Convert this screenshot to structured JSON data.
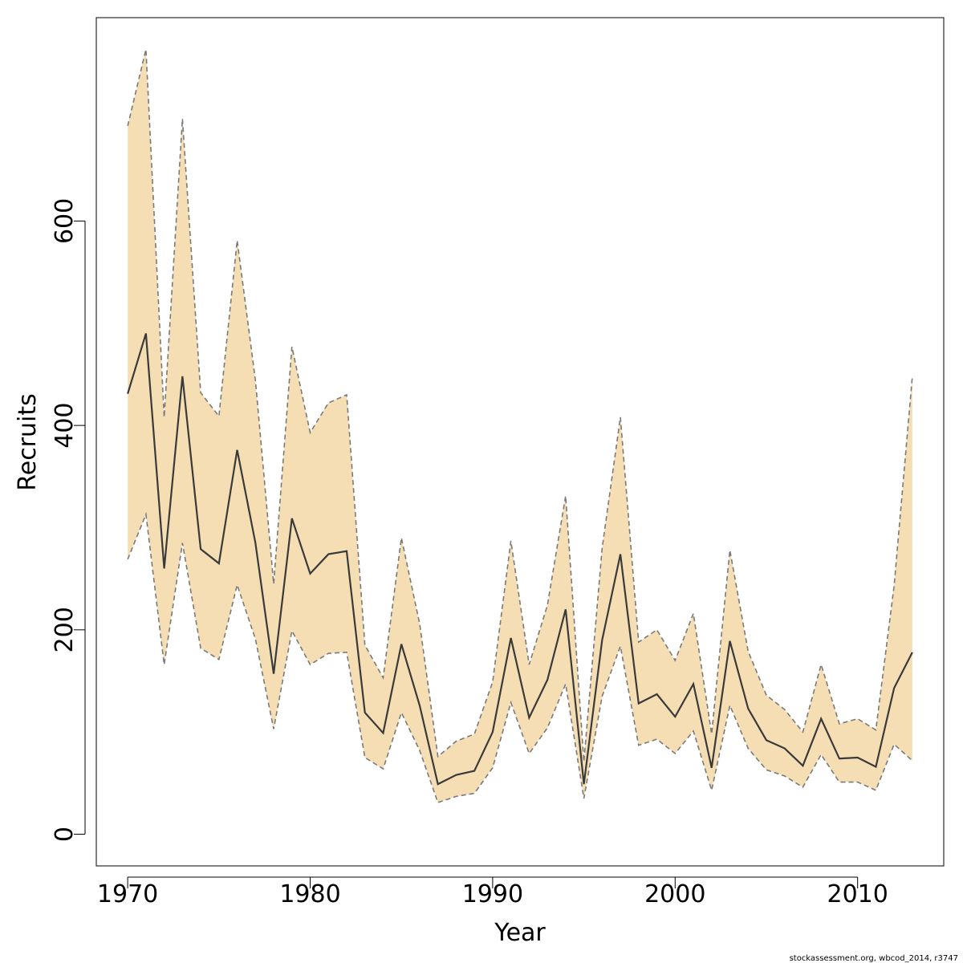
{
  "chart_data": {
    "type": "band-line",
    "x_label": "Year",
    "y_label": "Recruits",
    "footnote": "stockassessment.org, wbcod_2014, r3747",
    "x": [
      1970,
      1971,
      1972,
      1973,
      1974,
      1975,
      1976,
      1977,
      1978,
      1979,
      1980,
      1981,
      1982,
      1983,
      1984,
      1985,
      1986,
      1987,
      1988,
      1989,
      1990,
      1991,
      1992,
      1993,
      1994,
      1995,
      1996,
      1997,
      1998,
      1999,
      2000,
      2001,
      2002,
      2003,
      2004,
      2005,
      2006,
      2007,
      2008,
      2009,
      2010,
      2011,
      2012,
      2013
    ],
    "values": [
      431,
      490,
      260,
      448,
      279,
      265,
      376,
      285,
      157,
      309,
      255,
      274,
      277,
      119,
      99,
      186,
      126,
      49,
      58,
      62,
      100,
      192,
      114,
      151,
      220,
      49,
      190,
      274,
      128,
      137,
      115,
      147,
      65,
      189,
      123,
      92,
      84,
      67,
      113,
      74,
      75,
      66,
      143,
      178
    ],
    "lower": [
      269,
      313,
      166,
      285,
      182,
      171,
      244,
      191,
      103,
      199,
      166,
      177,
      178,
      75,
      64,
      119,
      82,
      31,
      37,
      40,
      65,
      129,
      79,
      104,
      147,
      35,
      135,
      184,
      87,
      93,
      79,
      101,
      43,
      126,
      84,
      63,
      57,
      46,
      78,
      51,
      51,
      43,
      88,
      72
    ],
    "upper": [
      693,
      768,
      408,
      700,
      432,
      409,
      581,
      444,
      245,
      477,
      393,
      422,
      430,
      185,
      153,
      290,
      206,
      76,
      91,
      98,
      149,
      287,
      166,
      224,
      331,
      71,
      280,
      408,
      188,
      200,
      170,
      216,
      98,
      278,
      179,
      136,
      122,
      100,
      166,
      108,
      113,
      102,
      243,
      448
    ],
    "line_color": "#3a3a3a",
    "band_color": "#f5deb3",
    "band_edge_color": "#7a7a7a",
    "xlim": [
      1968.28,
      2014.72
    ],
    "ylim": [
      -31,
      799
    ],
    "xticks": [
      1970,
      1980,
      1990,
      2000,
      2010
    ],
    "yticks": [
      0,
      200,
      400,
      600
    ]
  }
}
